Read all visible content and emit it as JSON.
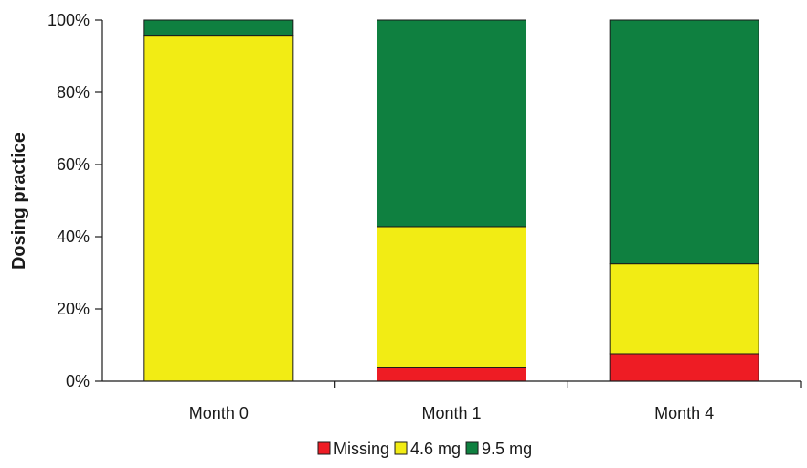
{
  "chart_data": {
    "type": "bar",
    "stacked": true,
    "percent": true,
    "categories": [
      "Month 0",
      "Month 1",
      "Month 4"
    ],
    "series": [
      {
        "name": "Missing",
        "color": "#ee1c24",
        "values": [
          0,
          3.7,
          7.6
        ]
      },
      {
        "name": "4.6 mg",
        "color": "#f2ec14",
        "values": [
          95.8,
          39.1,
          24.9
        ]
      },
      {
        "name": "9.5 mg",
        "color": "#0f8040",
        "values": [
          4.2,
          57.2,
          67.5
        ]
      }
    ],
    "ylabel": "Dosing practice",
    "xlabel": "",
    "ylim": [
      0,
      100
    ],
    "yticks": [
      0,
      20,
      40,
      60,
      80,
      100
    ],
    "ytick_labels": [
      "0%",
      "20%",
      "40%",
      "60%",
      "80%",
      "100%"
    ],
    "grid": false,
    "legend": "bottom"
  }
}
